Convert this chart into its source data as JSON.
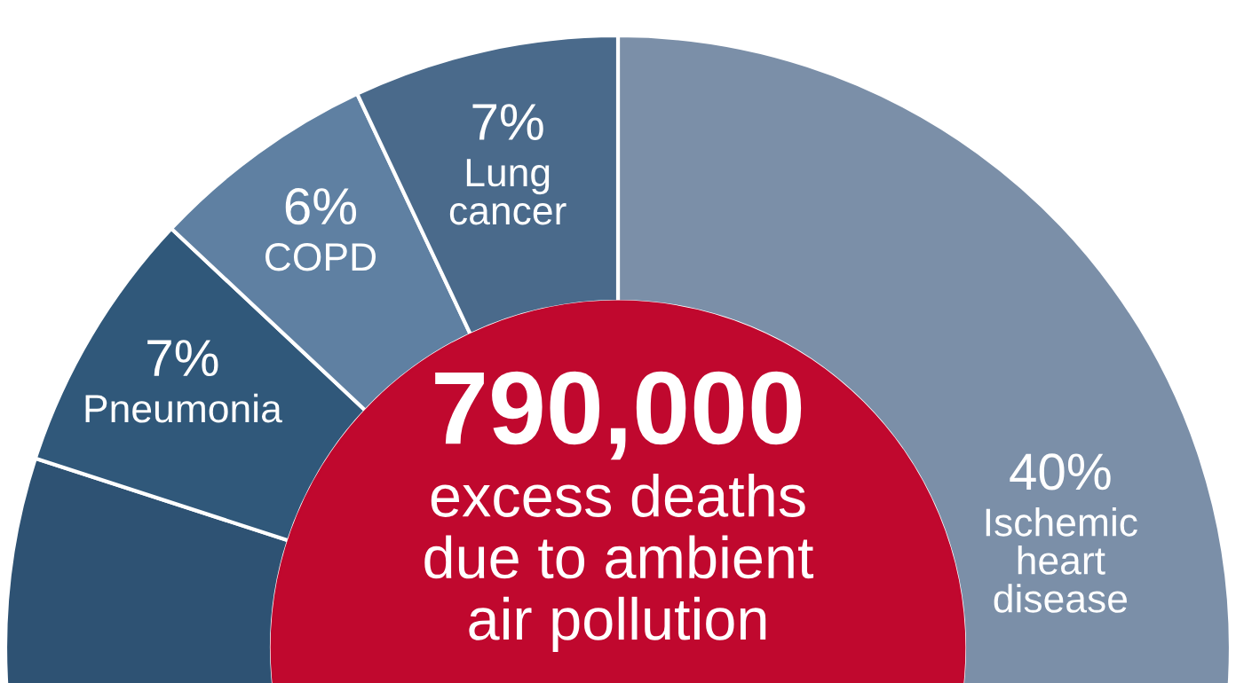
{
  "chart_data": {
    "type": "donut",
    "categories": [
      "Ischemic heart disease",
      null,
      "Pneumonia",
      "COPD",
      "Lung cancer"
    ],
    "values": [
      40,
      40,
      7,
      6,
      7
    ],
    "value_labels": [
      "40%",
      null,
      "7%",
      "6%",
      "7%"
    ],
    "colors": [
      "#7b8fa8",
      "#2e5273",
      "#30587a",
      "#5f80a2",
      "#4a6a8b"
    ],
    "annotations": [
      "790,000",
      "excess deaths\ndue to ambient\nair pollution"
    ],
    "legend": false
  }
}
